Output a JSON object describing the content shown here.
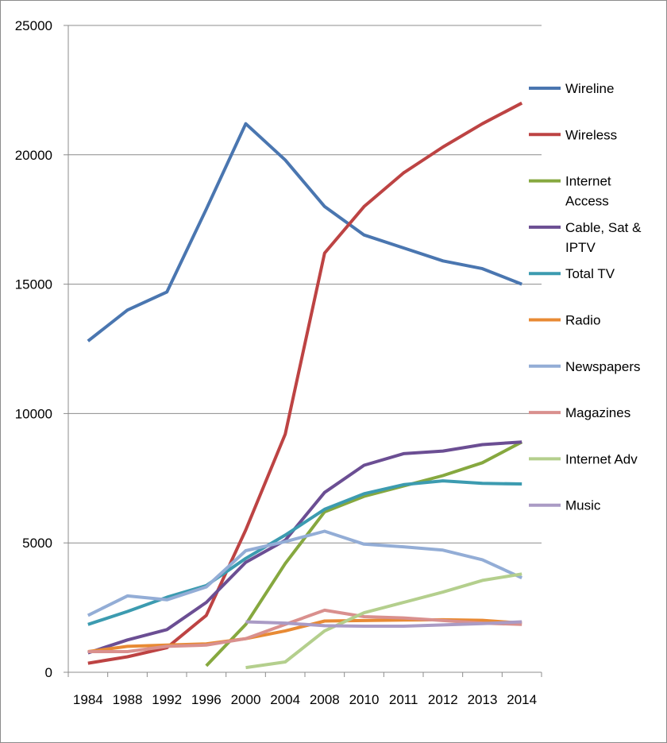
{
  "chart_data": {
    "type": "line",
    "title": "",
    "xlabel": "",
    "ylabel": "",
    "categories": [
      "1984",
      "1988",
      "1992",
      "1996",
      "2000",
      "2004",
      "2008",
      "2010",
      "2011",
      "2012",
      "2013",
      "2014"
    ],
    "ylim": [
      0,
      25000
    ],
    "yticks": [
      0,
      5000,
      10000,
      15000,
      20000,
      25000
    ],
    "grid": "horizontal",
    "legend_position": "right",
    "series": [
      {
        "name": "Wireline",
        "legend_lines": [
          "Wireline"
        ],
        "color": "#4A76B0",
        "values": [
          12800,
          14000,
          14700,
          17900,
          21200,
          19800,
          18000,
          16900,
          16400,
          15900,
          15600,
          15000
        ]
      },
      {
        "name": "Wireless",
        "legend_lines": [
          "Wireless"
        ],
        "color": "#BD4343",
        "values": [
          350,
          600,
          950,
          2200,
          5500,
          9200,
          16200,
          18000,
          19300,
          20300,
          21200,
          22000
        ]
      },
      {
        "name": "Internet Access",
        "legend_lines": [
          "Internet",
          "Access"
        ],
        "color": "#86A83F",
        "values": [
          null,
          null,
          null,
          250,
          1850,
          4200,
          6200,
          6800,
          7200,
          7600,
          8100,
          8900
        ]
      },
      {
        "name": "Cable, Sat & IPTV",
        "legend_lines": [
          "Cable, Sat &",
          "IPTV"
        ],
        "color": "#6B4E93",
        "values": [
          750,
          1250,
          1650,
          2700,
          4250,
          5100,
          6950,
          8000,
          8450,
          8550,
          8800,
          8900
        ]
      },
      {
        "name": "Total TV",
        "legend_lines": [
          "Total TV"
        ],
        "color": "#3C9BB0",
        "values": [
          1850,
          2350,
          2900,
          3350,
          4400,
          5300,
          6300,
          6900,
          7250,
          7400,
          7300,
          7280
        ]
      },
      {
        "name": "Radio",
        "legend_lines": [
          "Radio"
        ],
        "color": "#E88A34",
        "values": [
          800,
          1000,
          1050,
          1100,
          1300,
          1600,
          1980,
          2000,
          2020,
          2030,
          2010,
          1900
        ]
      },
      {
        "name": "Newspapers",
        "legend_lines": [
          "Newspapers"
        ],
        "color": "#93ADD6",
        "values": [
          2200,
          2950,
          2800,
          3300,
          4700,
          5050,
          5450,
          4950,
          4850,
          4720,
          4350,
          3650
        ]
      },
      {
        "name": "Magazines",
        "legend_lines": [
          "Magazines"
        ],
        "color": "#D9908E",
        "values": [
          800,
          800,
          1000,
          1050,
          1300,
          1850,
          2400,
          2150,
          2100,
          2000,
          1900,
          1850
        ]
      },
      {
        "name": "Internet Adv",
        "legend_lines": [
          "Internet Adv"
        ],
        "color": "#B4CF8D",
        "values": [
          null,
          null,
          null,
          null,
          180,
          400,
          1600,
          2300,
          2700,
          3100,
          3550,
          3800
        ]
      },
      {
        "name": "Music",
        "legend_lines": [
          "Music"
        ],
        "color": "#AA9BC5",
        "values": [
          null,
          null,
          null,
          null,
          1950,
          1900,
          1800,
          1780,
          1780,
          1830,
          1880,
          1950
        ]
      }
    ]
  }
}
